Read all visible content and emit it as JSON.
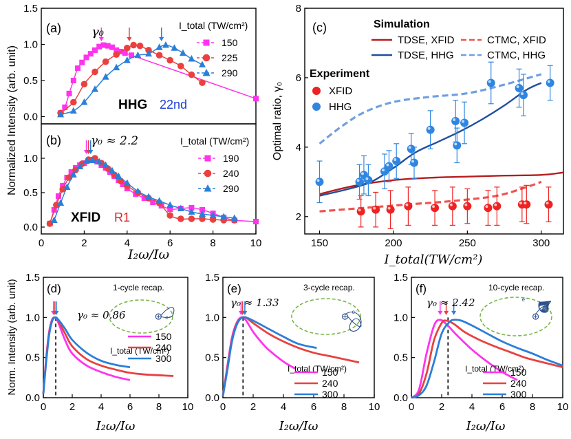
{
  "colors": {
    "magenta": "#ff33ee",
    "red": "#ea4040",
    "blue": "#2a7fd8",
    "dark_red": "#b71c1c",
    "dark_blue": "#1f4e9c",
    "light_red": "#ef5350",
    "light_blue": "#6f9fe0",
    "exp_red": "#ee2222",
    "exp_blue": "#2f86e0",
    "inset_green": "#7ab648",
    "inset_traj": "#2d4f8c"
  },
  "text": {
    "a_label": "(a)",
    "b_label": "(b)",
    "c_label": "(c)",
    "d_label": "(d)",
    "e_label": "(e)",
    "f_label": "(f)",
    "ylabel_ab": "Normalized Intensity (arb. unit)",
    "ylabel_def": "Norm. Intensity (arb. unit)",
    "ylabel_c": "Optimal ratio, γ₀",
    "xlabel_ratio": "I₂ω/Iω",
    "xlabel_c": "I_total(TW/cm²)",
    "itotal_unit": "I_total (TW/cm²)",
    "gamma0": "γ₀",
    "b_gamma": "γ₀ ≈ 2.2",
    "d_gamma": "γ₀ ≈ 0.86",
    "e_gamma": "γ₀ ≈ 1.33",
    "f_gamma": "γ₀ ≈ 2.42",
    "hhg_a": "HHG",
    "hhg_order": "22nd",
    "xfid_b": "XFID",
    "r1_b": "R1",
    "sim_title": "Simulation",
    "exp_title": "Experiment",
    "d_recap": "1-cycle recap.",
    "e_recap": "3-cycle recap.",
    "f_recap": "10-cycle recap.",
    "electron": "e⁻"
  },
  "legend_c": {
    "tdse_xfid": "TDSE, XFID",
    "tdse_hhg": "TDSE, HHG",
    "ctmc_xfid": "CTMC, XFID",
    "ctmc_hhg": "CTMC, HHG",
    "exp_xfid": "XFID",
    "exp_hhg": "HHG"
  },
  "chart_data": [
    {
      "panel": "a",
      "type": "line",
      "ylabel": "Normalized Intensity (arb. unit)",
      "xlim": [
        0,
        10
      ],
      "ylim": [
        -0.1,
        1.5
      ],
      "yticks": [
        0.0,
        0.5,
        1.0,
        1.5
      ],
      "legend_title": "I_total (TW/cm²)",
      "arrows_at": [
        2.8,
        4.1,
        5.6
      ],
      "series": [
        {
          "name": "150",
          "marker": "square",
          "color": "magenta",
          "x": [
            0.9,
            1.1,
            1.3,
            1.5,
            1.7,
            1.9,
            2.1,
            2.3,
            2.5,
            2.7,
            2.9,
            3.1,
            3.3,
            3.5,
            3.7,
            3.9,
            4.2,
            10
          ],
          "y": [
            0.05,
            0.13,
            0.32,
            0.5,
            0.67,
            0.75,
            0.82,
            0.87,
            0.92,
            0.97,
            0.99,
            0.98,
            0.96,
            0.92,
            0.9,
            0.88,
            0.85,
            0.25
          ]
        },
        {
          "name": "225",
          "marker": "circle",
          "color": "red",
          "x": [
            0.9,
            1.5,
            2.0,
            2.5,
            3.0,
            3.5,
            4.0,
            4.3,
            4.6,
            5.0,
            5.5,
            6.0,
            6.5,
            7.0,
            7.5
          ],
          "y": [
            0.05,
            0.2,
            0.45,
            0.62,
            0.76,
            0.86,
            0.95,
            0.99,
            0.98,
            0.92,
            0.85,
            0.78,
            0.7,
            0.58,
            0.47
          ]
        },
        {
          "name": "290",
          "marker": "triangle",
          "color": "blue",
          "x": [
            0.9,
            1.5,
            2.0,
            2.5,
            3.0,
            3.5,
            4.0,
            4.5,
            5.0,
            5.5,
            5.8,
            6.2,
            6.6,
            7.0,
            7.5
          ],
          "y": [
            0.03,
            0.08,
            0.2,
            0.38,
            0.55,
            0.68,
            0.78,
            0.85,
            0.87,
            0.96,
            0.99,
            0.95,
            0.88,
            0.8,
            0.72
          ]
        }
      ]
    },
    {
      "panel": "b",
      "type": "line",
      "xlabel": "I₂ω/Iω",
      "xlim": [
        0,
        10
      ],
      "ylim": [
        -0.1,
        1.5
      ],
      "xticks": [
        0,
        2,
        4,
        6,
        8,
        10
      ],
      "yticks": [
        0.0,
        0.5,
        1.0
      ],
      "legend_title": "I_total (TW/cm²)",
      "arrows_at": [
        2.1,
        2.2,
        2.3
      ],
      "series": [
        {
          "name": "190",
          "marker": "square",
          "color": "magenta",
          "x": [
            0.4,
            0.6,
            0.8,
            1.0,
            1.2,
            1.4,
            1.6,
            1.8,
            2.0,
            2.2,
            2.4,
            2.6,
            2.8,
            3.0,
            3.2,
            3.4,
            3.6,
            3.8,
            4.0,
            4.4,
            4.8,
            5.2,
            5.6,
            6.0,
            6.5,
            7.0,
            7.5,
            8.0,
            8.5,
            9.0,
            10.0
          ],
          "y": [
            0.05,
            0.25,
            0.45,
            0.6,
            0.72,
            0.8,
            0.86,
            0.9,
            0.93,
            0.97,
            0.98,
            0.95,
            0.9,
            0.86,
            0.8,
            0.74,
            0.68,
            0.62,
            0.56,
            0.48,
            0.42,
            0.36,
            0.31,
            0.26,
            0.27,
            0.28,
            0.25,
            0.2,
            0.14,
            0.1,
            0.08
          ]
        },
        {
          "name": "240",
          "marker": "circle",
          "color": "red",
          "x": [
            0.4,
            0.7,
            1.0,
            1.3,
            1.6,
            1.9,
            2.2,
            2.5,
            2.8,
            3.1,
            3.4,
            3.7,
            4.0,
            4.5,
            5.0,
            5.5,
            6.0,
            6.5,
            7.0,
            7.5,
            8.0,
            8.5,
            9.0
          ],
          "y": [
            0.05,
            0.32,
            0.55,
            0.72,
            0.83,
            0.92,
            0.98,
            1.0,
            0.93,
            0.85,
            0.76,
            0.67,
            0.6,
            0.5,
            0.42,
            0.35,
            0.17,
            0.12,
            0.12,
            0.12,
            0.11,
            0.1,
            0.1
          ]
        },
        {
          "name": "290",
          "marker": "triangle",
          "color": "blue",
          "x": [
            0.6,
            0.9,
            1.2,
            1.5,
            1.8,
            2.1,
            2.4,
            2.7,
            3.0,
            3.3,
            3.6,
            4.0,
            4.5,
            5.0,
            5.5,
            6.0,
            6.5,
            7.0,
            7.5,
            8.0,
            8.5,
            9.0
          ],
          "y": [
            0.1,
            0.35,
            0.58,
            0.76,
            0.88,
            0.96,
            0.97,
            0.95,
            0.9,
            0.82,
            0.74,
            0.64,
            0.52,
            0.44,
            0.38,
            0.32,
            0.27,
            0.22,
            0.19,
            0.17,
            0.15,
            0.13
          ]
        }
      ]
    },
    {
      "panel": "c",
      "type": "line",
      "xlabel": "I_total(TW/cm²)",
      "ylabel": "Optimal ratio, γ₀",
      "xlim": [
        140,
        315
      ],
      "ylim": [
        1.5,
        8
      ],
      "xticks": [
        150,
        200,
        250,
        300
      ],
      "yticks": [
        2,
        4,
        6,
        8
      ],
      "series": [
        {
          "name": "TDSE, XFID",
          "style": "solid",
          "color": "dark_red",
          "x": [
            150,
            175,
            200,
            225,
            250,
            275,
            300,
            315
          ],
          "y": [
            2.65,
            2.9,
            3.05,
            3.12,
            3.15,
            3.18,
            3.2,
            3.27
          ]
        },
        {
          "name": "TDSE, HHG",
          "style": "solid",
          "color": "dark_blue",
          "x": [
            150,
            170,
            185,
            200,
            215,
            230,
            245,
            260,
            275,
            290,
            300
          ],
          "y": [
            2.6,
            2.8,
            3.0,
            3.4,
            3.85,
            4.15,
            4.45,
            4.8,
            5.2,
            5.65,
            5.85
          ]
        },
        {
          "name": "CTMC, XFID",
          "style": "dashed",
          "color": "light_red",
          "x": [
            150,
            180,
            210,
            240,
            270,
            290,
            300
          ],
          "y": [
            2.15,
            2.25,
            2.35,
            2.45,
            2.6,
            2.85,
            3.0
          ]
        },
        {
          "name": "CTMC, HHG",
          "style": "dashed",
          "color": "light_blue",
          "x": [
            150,
            165,
            180,
            200,
            225,
            250,
            275,
            300
          ],
          "y": [
            4.1,
            4.6,
            5.0,
            5.3,
            5.45,
            5.55,
            5.8,
            6.1
          ]
        },
        {
          "name": "XFID",
          "style": "points",
          "color": "exp_red",
          "x": [
            178,
            188,
            198,
            210,
            228,
            240,
            250,
            264,
            270,
            287,
            290,
            305
          ],
          "y": [
            2.15,
            2.2,
            2.2,
            2.3,
            2.25,
            2.3,
            2.3,
            2.25,
            2.3,
            2.35,
            2.35,
            2.35
          ],
          "err": [
            0.45,
            0.5,
            0.55,
            0.55,
            0.5,
            0.55,
            0.5,
            0.5,
            0.55,
            0.5,
            0.55,
            0.5
          ]
        },
        {
          "name": "HHG",
          "style": "points",
          "color": "exp_blue",
          "x": [
            150,
            177,
            180,
            183,
            194,
            197,
            202,
            212,
            214,
            225,
            242,
            243,
            248,
            266,
            285,
            288,
            306
          ],
          "y": [
            3.0,
            3.0,
            3.2,
            3.05,
            3.3,
            3.45,
            3.6,
            3.95,
            3.55,
            4.5,
            4.75,
            4.05,
            4.7,
            5.85,
            5.7,
            5.5,
            5.85
          ],
          "err": [
            0.6,
            0.5,
            0.55,
            0.45,
            0.5,
            0.45,
            0.5,
            0.45,
            0.45,
            0.55,
            0.6,
            0.5,
            0.6,
            0.6,
            0.55,
            0.6,
            0.5
          ]
        }
      ]
    },
    {
      "panel": "d",
      "type": "line",
      "xlabel": "I₂ω/Iω",
      "ylabel": "Norm. Intensity (arb. unit)",
      "xlim": [
        0,
        10
      ],
      "ylim": [
        0,
        1.5
      ],
      "xticks": [
        0,
        2,
        4,
        6,
        8,
        10
      ],
      "yticks": [
        0.0,
        0.5,
        1.0,
        1.5
      ],
      "gamma0_marker": 0.86,
      "arrows_at": [
        0.7,
        0.8,
        0.9
      ],
      "legend_title": "I_total (TW/cm²)",
      "series": [
        {
          "name": "150",
          "color": "magenta",
          "x": [
            0.0,
            0.2,
            0.4,
            0.6,
            0.8,
            1.0,
            1.5,
            2.0,
            3.0,
            4.0,
            5.0,
            6.0
          ],
          "y": [
            0.05,
            0.5,
            0.82,
            0.97,
            1.0,
            0.95,
            0.72,
            0.55,
            0.4,
            0.32,
            0.26,
            0.22
          ]
        },
        {
          "name": "240",
          "color": "red",
          "x": [
            0.0,
            0.2,
            0.4,
            0.6,
            0.8,
            1.0,
            1.5,
            2.0,
            3.0,
            4.0,
            5.0,
            6.0,
            7.0,
            8.0,
            9.0
          ],
          "y": [
            0.05,
            0.48,
            0.8,
            0.96,
            1.0,
            0.97,
            0.8,
            0.64,
            0.48,
            0.4,
            0.35,
            0.31,
            0.29,
            0.28,
            0.27
          ]
        },
        {
          "name": "300",
          "color": "blue",
          "x": [
            0.0,
            0.2,
            0.4,
            0.6,
            0.8,
            1.0,
            1.5,
            2.0,
            3.0,
            4.0,
            5.0,
            6.0
          ],
          "y": [
            0.05,
            0.45,
            0.78,
            0.95,
            1.0,
            0.98,
            0.86,
            0.72,
            0.56,
            0.46,
            0.41,
            0.38
          ]
        }
      ]
    },
    {
      "panel": "e",
      "type": "line",
      "xlabel": "I₂ω/Iω",
      "xlim": [
        0,
        10
      ],
      "ylim": [
        0,
        1.5
      ],
      "xticks": [
        0,
        2,
        4,
        6,
        8,
        10
      ],
      "yticks": [
        0.0,
        0.5,
        1.0,
        1.5
      ],
      "gamma0_marker": 1.33,
      "arrows_at": [
        1.2,
        1.3,
        1.45
      ],
      "legend_title": "I_total (TW/cm²)",
      "series": [
        {
          "name": "150",
          "color": "magenta",
          "x": [
            0.0,
            0.3,
            0.6,
            0.9,
            1.2,
            1.5,
            2.0,
            2.5,
            3.0,
            4.0,
            4.8
          ],
          "y": [
            0.02,
            0.4,
            0.75,
            0.93,
            1.0,
            0.97,
            0.82,
            0.7,
            0.6,
            0.45,
            0.36
          ]
        },
        {
          "name": "240",
          "color": "red",
          "x": [
            0.0,
            0.3,
            0.6,
            0.9,
            1.2,
            1.5,
            2.0,
            3.0,
            4.0,
            5.0,
            6.0,
            7.0,
            8.0,
            9.0
          ],
          "y": [
            0.02,
            0.38,
            0.72,
            0.92,
            0.99,
            1.0,
            0.93,
            0.8,
            0.7,
            0.62,
            0.56,
            0.52,
            0.48,
            0.44
          ]
        },
        {
          "name": "300",
          "color": "blue",
          "x": [
            0.0,
            0.3,
            0.6,
            0.9,
            1.2,
            1.5,
            2.0,
            3.0,
            4.0,
            5.0,
            6.2
          ],
          "y": [
            0.02,
            0.35,
            0.7,
            0.9,
            0.99,
            1.0,
            0.96,
            0.86,
            0.76,
            0.67,
            0.62
          ]
        }
      ]
    },
    {
      "panel": "f",
      "type": "line",
      "xlabel": "I₂ω/Iω",
      "xlim": [
        0,
        10
      ],
      "ylim": [
        0,
        1.5
      ],
      "xticks": [
        0,
        2,
        4,
        6,
        8,
        10
      ],
      "yticks": [
        0.0,
        0.5,
        1.0,
        1.5
      ],
      "gamma0_marker": 2.42,
      "arrows_at": [
        1.9,
        2.3,
        2.8
      ],
      "legend_title": "I_total (TW/cm²)",
      "series": [
        {
          "name": "150",
          "color": "magenta",
          "x": [
            0.0,
            0.5,
            1.0,
            1.5,
            1.9,
            2.4,
            3.0,
            4.0,
            5.0,
            6.0,
            7.0
          ],
          "y": [
            0.0,
            0.1,
            0.55,
            0.9,
            0.97,
            0.9,
            0.78,
            0.6,
            0.45,
            0.32,
            0.22
          ]
        },
        {
          "name": "240",
          "color": "red",
          "x": [
            0.0,
            0.5,
            1.0,
            1.5,
            2.0,
            2.3,
            2.8,
            3.5,
            4.5,
            5.5,
            6.5,
            7.5,
            8.5,
            10.0
          ],
          "y": [
            0.0,
            0.05,
            0.3,
            0.72,
            0.93,
            0.96,
            0.92,
            0.82,
            0.72,
            0.64,
            0.57,
            0.5,
            0.45,
            0.38
          ]
        },
        {
          "name": "300",
          "color": "blue",
          "x": [
            0.0,
            0.5,
            1.0,
            1.5,
            2.0,
            2.5,
            2.8,
            3.3,
            4.0,
            5.0,
            6.0,
            7.0,
            8.0,
            9.0,
            10.0
          ],
          "y": [
            0.0,
            0.03,
            0.15,
            0.45,
            0.8,
            0.94,
            0.97,
            0.96,
            0.9,
            0.8,
            0.7,
            0.62,
            0.55,
            0.47,
            0.4
          ]
        }
      ]
    }
  ]
}
